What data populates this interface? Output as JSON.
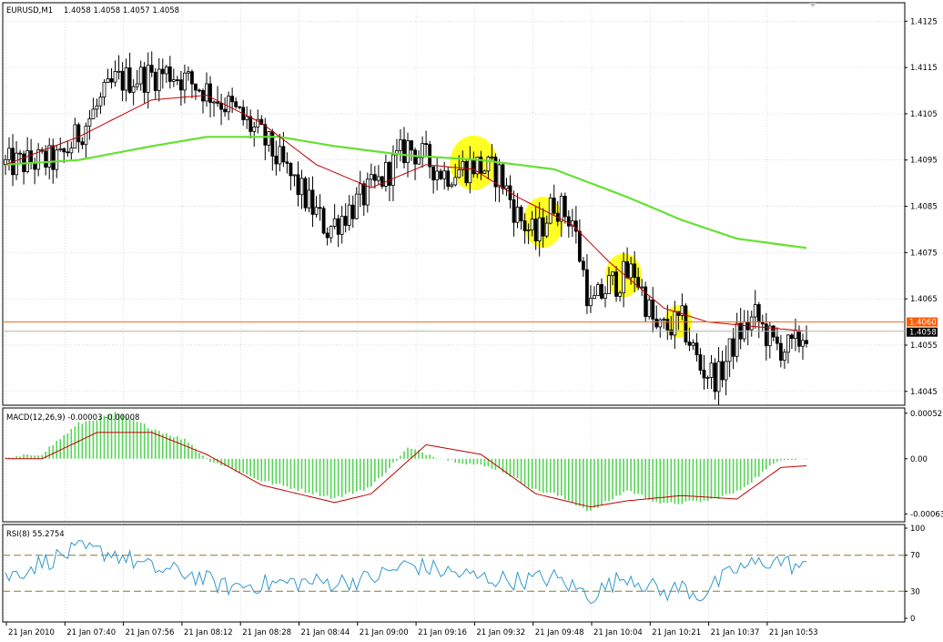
{
  "header": {
    "symbol_tf": "EURUSD,M1",
    "ohlc": "1.4058 1.4058 1.4057 1.4058"
  },
  "colors": {
    "background": "#ffffff",
    "grid": "#c8c8c8",
    "candle": "#000000",
    "ma_fast": "#c00000",
    "ma_slow": "#66e033",
    "highlight": "#ffff00",
    "level_line": "#ff6a1a",
    "bid_line": "#b0b0b0",
    "macd_hist": "#55d455",
    "macd_signal": "#c00000",
    "rsi_line": "#3399cc",
    "rsi_levels": "#8c7a2e",
    "price_tag_level_bg": "#ff5a00",
    "price_tag_bid_bg": "#000000"
  },
  "chart_data": [
    {
      "type": "candlestick",
      "panel": "price",
      "title": "EURUSD,M1  1.4058 1.4058 1.4057 1.4058",
      "y_ticks": [
        "1.4125",
        "1.4115",
        "1.4105",
        "1.4095",
        "1.4085",
        "1.4075",
        "1.4065",
        "1.4055",
        "1.4045"
      ],
      "ylim": [
        1.4042,
        1.4129
      ],
      "x_ticks": [
        "21 Jan 2010",
        "21 Jan 07:40",
        "21 Jan 07:56",
        "21 Jan 08:12",
        "21 Jan 08:28",
        "21 Jan 08:44",
        "21 Jan 09:00",
        "21 Jan 09:16",
        "21 Jan 09:32",
        "21 Jan 09:48",
        "21 Jan 10:04",
        "21 Jan 10:21",
        "21 Jan 10:37",
        "21 Jan 10:53"
      ],
      "bar_count": 220,
      "close_path": [
        [
          0,
          1.4094
        ],
        [
          15,
          1.4095
        ],
        [
          30,
          1.4112
        ],
        [
          45,
          1.4114
        ],
        [
          55,
          1.411
        ],
        [
          62,
          1.4106
        ],
        [
          70,
          1.41
        ],
        [
          80,
          1.4089
        ],
        [
          88,
          1.408
        ],
        [
          95,
          1.4085
        ],
        [
          102,
          1.409
        ],
        [
          110,
          1.4098
        ],
        [
          120,
          1.4092
        ],
        [
          128,
          1.4094
        ],
        [
          135,
          1.4092
        ],
        [
          140,
          1.4083
        ],
        [
          145,
          1.4078
        ],
        [
          150,
          1.4086
        ],
        [
          155,
          1.4082
        ],
        [
          160,
          1.4063
        ],
        [
          165,
          1.4068
        ],
        [
          172,
          1.4071
        ],
        [
          178,
          1.4058
        ],
        [
          185,
          1.406
        ],
        [
          190,
          1.405
        ],
        [
          195,
          1.4048
        ],
        [
          200,
          1.4057
        ],
        [
          205,
          1.4061
        ],
        [
          210,
          1.4055
        ],
        [
          215,
          1.4054
        ],
        [
          219,
          1.4058
        ]
      ],
      "ma_fast_path": [
        [
          0,
          1.4094
        ],
        [
          20,
          1.41
        ],
        [
          40,
          1.4108
        ],
        [
          55,
          1.4109
        ],
        [
          70,
          1.4103
        ],
        [
          85,
          1.4094
        ],
        [
          100,
          1.4089
        ],
        [
          115,
          1.4094
        ],
        [
          128,
          1.4093
        ],
        [
          140,
          1.4087
        ],
        [
          155,
          1.4081
        ],
        [
          165,
          1.4073
        ],
        [
          180,
          1.4063
        ],
        [
          192,
          1.406
        ],
        [
          205,
          1.4059
        ],
        [
          219,
          1.4058
        ]
      ],
      "ma_slow_path": [
        [
          0,
          1.4094
        ],
        [
          20,
          1.4095
        ],
        [
          40,
          1.4098
        ],
        [
          55,
          1.41
        ],
        [
          75,
          1.41
        ],
        [
          90,
          1.4098
        ],
        [
          110,
          1.4096
        ],
        [
          130,
          1.4095
        ],
        [
          150,
          1.4093
        ],
        [
          170,
          1.4087
        ],
        [
          185,
          1.4082
        ],
        [
          200,
          1.4078
        ],
        [
          219,
          1.4076
        ]
      ],
      "highlights_at_bar": [
        128,
        147,
        169,
        184
      ],
      "level_line": {
        "value": 1.406,
        "label": "1.4060"
      },
      "bid_line": {
        "value": 1.4058,
        "label": "1.4058"
      }
    },
    {
      "type": "histogram",
      "panel": "macd",
      "title": "MACD(12,26,9) -0.00003 -0.00008",
      "y_ticks": [
        "0.00052",
        "0.00",
        "-0.00063"
      ],
      "ylim": [
        -0.00072,
        0.00058
      ],
      "hist_path": [
        [
          0,
          0.0
        ],
        [
          10,
          6e-05
        ],
        [
          20,
          0.0004
        ],
        [
          30,
          0.00052
        ],
        [
          40,
          0.00035
        ],
        [
          50,
          0.0002
        ],
        [
          55,
          0.0
        ],
        [
          70,
          -0.00025
        ],
        [
          85,
          -0.0004
        ],
        [
          90,
          -0.00045
        ],
        [
          100,
          -0.00032
        ],
        [
          110,
          0.00012
        ],
        [
          120,
          0.0
        ],
        [
          135,
          -0.00012
        ],
        [
          145,
          -0.00036
        ],
        [
          150,
          -0.0004
        ],
        [
          160,
          -0.0006
        ],
        [
          170,
          -0.00036
        ],
        [
          180,
          -0.00052
        ],
        [
          192,
          -0.00048
        ],
        [
          200,
          -0.00038
        ],
        [
          212,
          0.0
        ],
        [
          219,
          0.0
        ]
      ],
      "signal_path": [
        [
          0,
          0.0
        ],
        [
          10,
          0.0
        ],
        [
          25,
          0.0003
        ],
        [
          40,
          0.0003
        ],
        [
          55,
          5e-05
        ],
        [
          70,
          -0.0003
        ],
        [
          90,
          -0.0005
        ],
        [
          100,
          -0.0004
        ],
        [
          115,
          0.00016
        ],
        [
          130,
          5e-05
        ],
        [
          145,
          -0.0004
        ],
        [
          160,
          -0.00055
        ],
        [
          170,
          -0.00048
        ],
        [
          185,
          -0.00042
        ],
        [
          200,
          -0.00046
        ],
        [
          212,
          -0.0001
        ],
        [
          219,
          -8e-05
        ]
      ]
    },
    {
      "type": "line",
      "panel": "rsi",
      "title": "RSI(8) 55.2754",
      "y_ticks": [
        "100",
        "70",
        "30",
        "0"
      ],
      "ylim": [
        0,
        100
      ],
      "levels": [
        70,
        30
      ],
      "rsi_path": [
        [
          0,
          45
        ],
        [
          10,
          62
        ],
        [
          20,
          76
        ],
        [
          30,
          72
        ],
        [
          40,
          55
        ],
        [
          50,
          50
        ],
        [
          60,
          35
        ],
        [
          70,
          38
        ],
        [
          80,
          40
        ],
        [
          90,
          40
        ],
        [
          100,
          44
        ],
        [
          110,
          60
        ],
        [
          120,
          52
        ],
        [
          130,
          45
        ],
        [
          140,
          42
        ],
        [
          150,
          45
        ],
        [
          160,
          25
        ],
        [
          170,
          48
        ],
        [
          180,
          28
        ],
        [
          185,
          35
        ],
        [
          190,
          25
        ],
        [
          200,
          55
        ],
        [
          210,
          65
        ],
        [
          219,
          55
        ]
      ]
    }
  ]
}
